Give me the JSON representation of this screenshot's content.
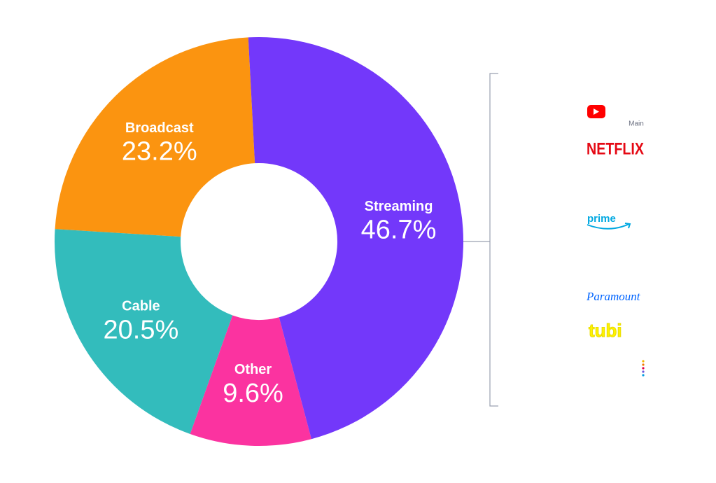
{
  "chart_data": {
    "type": "donut",
    "categories": [
      "Streaming",
      "Other",
      "Cable",
      "Broadcast"
    ],
    "values": [
      46.7,
      9.6,
      20.5,
      23.2
    ],
    "value_labels": [
      "46.7%",
      "9.6%",
      "20.5%",
      "23.2%"
    ],
    "colors": [
      "#7338fa",
      "#fb33a0",
      "#33bcbc",
      "#fb9410"
    ]
  },
  "logos": {
    "main": "Main",
    "netflix": "NETFLIX",
    "prime": "prime",
    "paramount": "Paramount",
    "tubi": "tubi"
  }
}
